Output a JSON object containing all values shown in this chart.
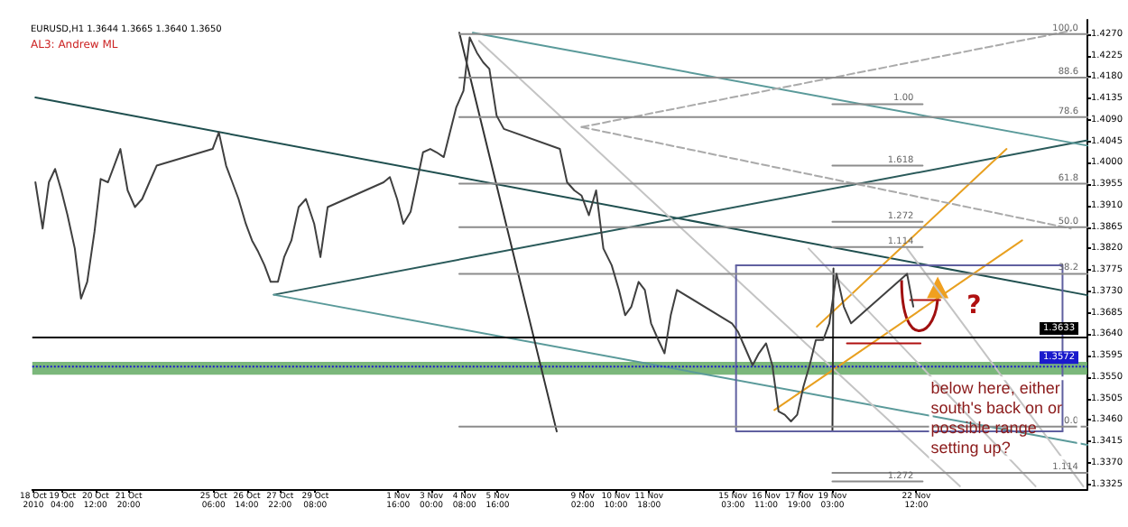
{
  "chart_data": {
    "type": "line",
    "title": "EURUSD,H1 1.3644 1.3665 1.3640 1.3650",
    "subtitle": "AL3: Andrew ML",
    "xlim": [
      "2010-10-17T23:00",
      "2010-11-29T09:00"
    ],
    "xticks": [
      {
        "value": "2010-10-18T00:00",
        "label": "18 Oct 2010"
      },
      {
        "value": "2010-10-19T04:00",
        "label": "19 Oct 04:00"
      },
      {
        "value": "2010-10-20T12:00",
        "label": "20 Oct 12:00"
      },
      {
        "value": "2010-10-21T20:00",
        "label": "21 Oct 20:00"
      },
      {
        "value": "2010-10-25T06:00",
        "label": "25 Oct 06:00"
      },
      {
        "value": "2010-10-26T14:00",
        "label": "26 Oct 14:00"
      },
      {
        "value": "2010-10-27T22:00",
        "label": "27 Oct 22:00"
      },
      {
        "value": "2010-10-29T08:00",
        "label": "29 Oct 08:00"
      },
      {
        "value": "2010-11-01T16:00",
        "label": "1 Nov 16:00"
      },
      {
        "value": "2010-11-03T00:00",
        "label": "3 Nov 00:00"
      },
      {
        "value": "2010-11-04T08:00",
        "label": "4 Nov 08:00"
      },
      {
        "value": "2010-11-05T16:00",
        "label": "5 Nov 16:00"
      },
      {
        "value": "2010-11-09T02:00",
        "label": "9 Nov 02:00"
      },
      {
        "value": "2010-11-10T10:00",
        "label": "10 Nov 10:00"
      },
      {
        "value": "2010-11-11T18:00",
        "label": "11 Nov 18:00"
      },
      {
        "value": "2010-11-15T03:00",
        "label": "15 Nov 03:00"
      },
      {
        "value": "2010-11-16T11:00",
        "label": "16 Nov 11:00"
      },
      {
        "value": "2010-11-17T19:00",
        "label": "17 Nov 19:00"
      },
      {
        "value": "2010-11-19T03:00",
        "label": "19 Nov 03:00"
      },
      {
        "value": "2010-11-22T12:00",
        "label": "22 Nov 12:00"
      }
    ],
    "ylim": [
      1.3315,
      1.43
    ],
    "yticks": [
      {
        "value": 1.3325,
        "label": "1.3325"
      },
      {
        "value": 1.337,
        "label": "1.3370"
      },
      {
        "value": 1.3415,
        "label": "1.3415"
      },
      {
        "value": 1.346,
        "label": "1.3460"
      },
      {
        "value": 1.3505,
        "label": "1.3505"
      },
      {
        "value": 1.355,
        "label": "1.3550"
      },
      {
        "value": 1.3595,
        "label": "1.3595"
      },
      {
        "value": 1.364,
        "label": "1.3640"
      },
      {
        "value": 1.3685,
        "label": "1.3685"
      },
      {
        "value": 1.373,
        "label": "1.3730"
      },
      {
        "value": 1.3775,
        "label": "1.3775"
      },
      {
        "value": 1.382,
        "label": "1.3820"
      },
      {
        "value": 1.3865,
        "label": "1.3865"
      },
      {
        "value": 1.391,
        "label": "1.3910"
      },
      {
        "value": 1.3955,
        "label": "1.3955"
      },
      {
        "value": 1.4,
        "label": "1.4000"
      },
      {
        "value": 1.4045,
        "label": "1.4045"
      },
      {
        "value": 1.409,
        "label": "1.4090"
      },
      {
        "value": 1.4135,
        "label": "1.4135"
      },
      {
        "value": 1.418,
        "label": "1.4180"
      },
      {
        "value": 1.4225,
        "label": "1.4225"
      },
      {
        "value": 1.427,
        "label": "1.4270"
      }
    ],
    "grid": false,
    "legend": false,
    "marker": "none",
    "line_style": "solid",
    "series": [
      {
        "color": "#404040",
        "x": [
          "2010-10-18T02:00",
          "2010-10-18T09:00",
          "2010-10-18T15:00",
          "2010-10-18T21:00",
          "2010-10-19T03:00",
          "2010-10-19T09:00",
          "2010-10-19T16:00",
          "2010-10-19T22:00",
          "2010-10-20T04:00",
          "2010-10-20T11:00",
          "2010-10-20T17:00",
          "2010-10-21T00:00",
          "2010-10-21T06:00",
          "2010-10-21T12:00",
          "2010-10-21T19:00",
          "2010-10-22T02:00",
          "2010-10-22T09:00",
          "2010-10-22T16:00",
          "2010-10-22T23:00",
          "2010-10-25T05:00",
          "2010-10-25T11:00",
          "2010-10-25T18:00",
          "2010-10-26T00:00",
          "2010-10-26T06:00",
          "2010-10-26T13:00",
          "2010-10-26T19:00",
          "2010-10-27T01:00",
          "2010-10-27T07:00",
          "2010-10-27T13:00",
          "2010-10-27T20:00",
          "2010-10-28T02:00",
          "2010-10-28T09:00",
          "2010-10-28T16:00",
          "2010-10-28T23:00",
          "2010-10-29T07:00",
          "2010-10-29T13:00",
          "2010-10-29T20:00",
          "2010-11-01T02:00",
          "2010-11-01T08:00",
          "2010-11-01T15:00",
          "2010-11-01T21:00",
          "2010-11-02T04:00",
          "2010-11-02T10:00",
          "2010-11-02T16:00",
          "2010-11-02T23:00",
          "2010-11-03T05:00",
          "2010-11-03T12:00",
          "2010-11-03T18:00",
          "2010-11-04T00:00",
          "2010-11-04T07:00",
          "2010-11-04T13:00",
          "2010-11-04T20:00",
          "2010-11-05T02:00",
          "2010-11-05T08:00",
          "2010-11-05T15:00",
          "2010-11-05T22:00",
          "2010-11-08T04:00",
          "2010-11-08T11:00",
          "2010-11-08T18:00",
          "2010-11-09T01:00",
          "2010-11-09T08:00",
          "2010-11-09T15:00",
          "2010-11-09T22:00",
          "2010-11-10T06:00",
          "2010-11-10T13:00",
          "2010-11-10T19:00",
          "2010-11-11T01:00",
          "2010-11-11T08:00",
          "2010-11-11T14:00",
          "2010-11-11T20:00",
          "2010-11-12T03:00",
          "2010-11-12T09:00",
          "2010-11-12T15:00",
          "2010-11-12T21:00",
          "2010-11-15T02:00",
          "2010-11-15T08:00",
          "2010-11-15T15:00",
          "2010-11-15T22:00",
          "2010-11-16T04:00",
          "2010-11-16T11:00",
          "2010-11-16T17:00",
          "2010-11-16T23:00",
          "2010-11-17T05:00",
          "2010-11-17T11:00",
          "2010-11-17T17:00",
          "2010-11-17T23:00",
          "2010-11-18T05:00",
          "2010-11-18T11:00",
          "2010-11-18T18:00",
          "2010-11-19T00:00",
          "2010-11-19T07:00",
          "2010-11-19T14:00",
          "2010-11-19T21:00",
          "2010-11-22T03:00",
          "2010-11-22T09:00"
        ],
        "values": [
          1.3959,
          1.3862,
          1.3959,
          1.3987,
          1.3942,
          1.389,
          1.382,
          1.3715,
          1.375,
          1.3855,
          1.3966,
          1.3959,
          1.3994,
          1.4029,
          1.3942,
          1.3907,
          1.3924,
          1.3959,
          1.3994,
          1.4029,
          1.4064,
          1.3994,
          1.3959,
          1.3924,
          1.3872,
          1.3837,
          1.3813,
          1.3785,
          1.375,
          1.375,
          1.3802,
          1.3837,
          1.3907,
          1.3924,
          1.3872,
          1.3802,
          1.3907,
          1.3959,
          1.397,
          1.3924,
          1.3872,
          1.3897,
          1.3959,
          1.4022,
          1.4029,
          1.4022,
          1.4012,
          1.4064,
          1.4116,
          1.4151,
          1.4263,
          1.4231,
          1.4211,
          1.4197,
          1.4099,
          1.4071,
          1.4029,
          1.3959,
          1.3942,
          1.3931,
          1.389,
          1.3942,
          1.382,
          1.3785,
          1.3733,
          1.368,
          1.3698,
          1.375,
          1.3733,
          1.3663,
          1.3628,
          1.36,
          1.368,
          1.3733,
          1.3663,
          1.3645,
          1.361,
          1.3575,
          1.36,
          1.3621,
          1.3575,
          1.3478,
          1.3471,
          1.3457,
          1.3471,
          1.353,
          1.3575,
          1.3628,
          1.3628,
          1.3663,
          1.3767,
          1.3698,
          1.3663,
          1.3767,
          1.3698
        ]
      },
      {
        "color": "#1f4f4f",
        "x": [
          "2010-10-18T02:00",
          "2010-11-29T09:00"
        ],
        "values": [
          1.4137,
          1.3722
        ]
      },
      {
        "color": "#2a5a5a",
        "x": [
          "2010-10-27T16:00",
          "2010-11-29T09:00"
        ],
        "values": [
          1.3723,
          1.4047
        ]
      },
      {
        "color": "#5a9a9a",
        "x": [
          "2010-11-04T16:00",
          "2010-11-29T09:00"
        ],
        "values": [
          1.4273,
          1.4036
        ]
      },
      {
        "color": "#5a9a9a",
        "x": [
          "2010-10-27T16:00",
          "2010-11-29T09:00"
        ],
        "values": [
          1.3723,
          1.3408
        ]
      },
      {
        "color": "#e8a020",
        "x": [
          "2010-11-16T19:00",
          "2010-11-26T18:00"
        ],
        "values": [
          1.3481,
          1.3837
        ]
      },
      {
        "color": "#e8a020",
        "x": [
          "2010-11-18T12:00",
          "2010-11-26T03:00"
        ],
        "values": [
          1.3656,
          1.4029
        ]
      },
      {
        "color": "#c4c4c4",
        "x": [
          "2010-11-04T22:00",
          "2010-11-24T06:00"
        ],
        "values": [
          1.4256,
          1.3321
        ]
      },
      {
        "color": "#c4c4c4",
        "x": [
          "2010-11-18T04:00",
          "2010-11-27T07:00"
        ],
        "values": [
          1.382,
          1.3321
        ]
      },
      {
        "color": "#c4c4c4",
        "x": [
          "2010-11-22T03:00",
          "2010-11-29T05:00"
        ],
        "values": [
          1.382,
          1.3321
        ]
      },
      {
        "color": "#333333",
        "x": [
          "2010-11-04T03:00",
          "2010-11-08T01:00"
        ],
        "values": [
          1.4273,
          1.3436
        ]
      },
      {
        "color": "#333333",
        "x": [
          "2010-11-19T04:00",
          "2010-11-19T03:00"
        ],
        "values": [
          1.3778,
          1.3436
        ]
      },
      {
        "color": "#aaaaaa",
        "line_style": "dashed",
        "x": [
          "2010-11-09T01:00",
          "2010-11-28T17:00"
        ],
        "values": [
          1.4075,
          1.4277
        ]
      },
      {
        "color": "#aaaaaa",
        "line_style": "dashed",
        "x": [
          "2010-11-09T01:00",
          "2010-11-28T17:00"
        ],
        "values": [
          1.4075,
          1.3862
        ]
      },
      {
        "color": "#6060a0",
        "x": [
          "2010-11-15T06:00",
          "2010-11-28T09:00",
          "2010-11-28T09:00"
        ],
        "values": [
          1.3785,
          1.3785,
          1.3436
        ]
      },
      {
        "color": "#6060a0",
        "x": [
          "2010-11-28T09:00",
          "2010-11-15T06:00",
          "2010-11-15T06:00"
        ],
        "values": [
          1.3436,
          1.3436,
          1.3785
        ]
      },
      {
        "color": "#b01010",
        "x": [
          "2010-11-22T06:00",
          "2010-11-23T11:00"
        ],
        "values": [
          1.3712,
          1.3712
        ]
      },
      {
        "color": "#b01010",
        "x": [
          "2010-11-19T17:00",
          "2010-11-22T16:00"
        ],
        "values": [
          1.3621,
          1.3621
        ]
      },
      {
        "name": "100.0",
        "color": "#8c8c8c",
        "x": [
          "2010-11-04T03:00",
          "2010-11-29T09:00"
        ],
        "values": [
          1.427,
          1.427
        ]
      },
      {
        "name": "88.6",
        "color": "#8c8c8c",
        "x": [
          "2010-11-04T03:00",
          "2010-11-29T09:00"
        ],
        "values": [
          1.4179,
          1.4179
        ]
      },
      {
        "name": "78.6",
        "color": "#8c8c8c",
        "x": [
          "2010-11-04T03:00",
          "2010-11-29T09:00"
        ],
        "values": [
          1.4096,
          1.4096
        ]
      },
      {
        "name": "61.8",
        "color": "#8c8c8c",
        "x": [
          "2010-11-04T03:00",
          "2010-11-29T09:00"
        ],
        "values": [
          1.3956,
          1.3956
        ]
      },
      {
        "name": "50.0",
        "color": "#8c8c8c",
        "x": [
          "2010-11-04T03:00",
          "2010-11-29T09:00"
        ],
        "values": [
          1.3865,
          1.3865
        ]
      },
      {
        "name": "38.2",
        "color": "#8c8c8c",
        "x": [
          "2010-11-04T03:00",
          "2010-11-29T09:00"
        ],
        "values": [
          1.3767,
          1.3767
        ]
      },
      {
        "name": "0.0",
        "color": "#8c8c8c",
        "x": [
          "2010-11-04T03:00",
          "2010-11-29T09:00"
        ],
        "values": [
          1.3446,
          1.3446
        ]
      },
      {
        "name": "1.00",
        "color": "#8c8c8c",
        "x": [
          "2010-11-19T03:00",
          "2010-11-22T18:00"
        ],
        "values": [
          1.4123,
          1.4123
        ]
      },
      {
        "name": "1.618",
        "color": "#8c8c8c",
        "x": [
          "2010-11-19T03:00",
          "2010-11-22T18:00"
        ],
        "values": [
          1.3994,
          1.3994
        ]
      },
      {
        "name": "1.272",
        "color": "#8c8c8c",
        "x": [
          "2010-11-19T03:00",
          "2010-11-22T18:00"
        ],
        "values": [
          1.3876,
          1.3876
        ]
      },
      {
        "name": "1.114",
        "color": "#8c8c8c",
        "x": [
          "2010-11-19T03:00",
          "2010-11-22T18:00"
        ],
        "values": [
          1.3823,
          1.3823
        ]
      },
      {
        "name": "1.272",
        "color": "#8c8c8c",
        "x": [
          "2010-11-19T03:00",
          "2010-11-22T18:00"
        ],
        "values": [
          1.3331,
          1.3331
        ]
      },
      {
        "name": "1.114",
        "color": "#8c8c8c",
        "x": [
          "2010-11-19T03:00",
          "2010-11-29T09:00"
        ],
        "values": [
          1.3349,
          1.3349
        ]
      }
    ],
    "ref_lines": [
      {
        "axis": "y",
        "value": 1.3633,
        "label": "1.3633",
        "color": "#000000"
      },
      {
        "axis": "y",
        "value": 1.3572,
        "label": "1.3572",
        "color": "#1a1acc",
        "line_style": "dotted"
      }
    ],
    "bands": [
      {
        "axis": "y",
        "from": 1.3555,
        "to": 1.3582,
        "color": "#5aa55a"
      }
    ],
    "annotations": [
      {
        "text": "?",
        "x": "2010-11-24T02:00",
        "y": 1.3742
      },
      {
        "text": "below here, either south's back on or possible range setting up?",
        "x": "2010-11-23T02:00",
        "y": 1.3555
      }
    ]
  }
}
